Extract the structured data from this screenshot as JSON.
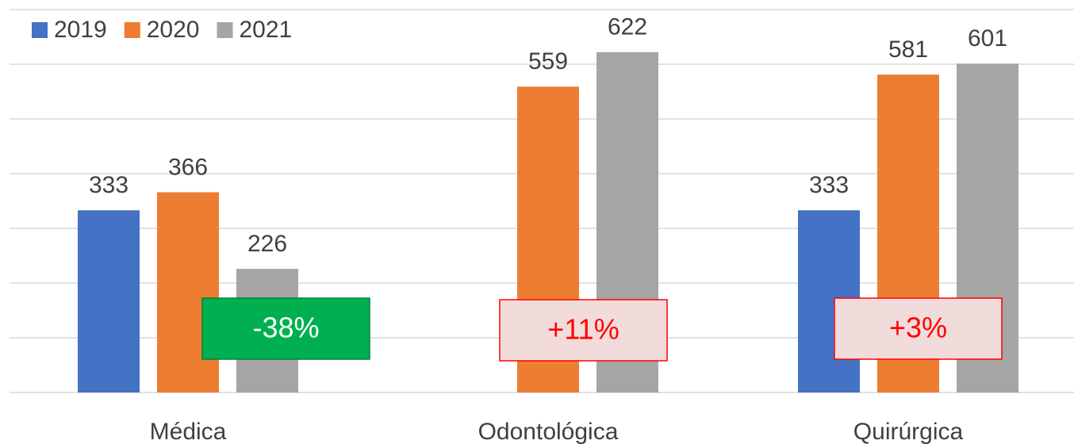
{
  "chart_data": {
    "type": "bar",
    "categories": [
      "Médica",
      "Odontológica",
      "Quirúrgica"
    ],
    "series": [
      {
        "name": "2019",
        "color": "#4472c4",
        "values": [
          333,
          null,
          333
        ]
      },
      {
        "name": "2020",
        "color": "#ed7d31",
        "values": [
          366,
          559,
          581
        ]
      },
      {
        "name": "2021",
        "color": "#a5a5a5",
        "values": [
          226,
          622,
          601
        ]
      }
    ],
    "ylim": [
      0,
      700
    ],
    "yticks": [
      0,
      100,
      200,
      300,
      400,
      500,
      600,
      700
    ],
    "grid": true,
    "legend": "top-left",
    "annotations": [
      {
        "text": "-38%",
        "category": 0,
        "fill": "#00b050",
        "border": "#00803a",
        "color": "#ffffff"
      },
      {
        "text": "+11%",
        "category": 1,
        "fill": "#f2dcdb",
        "border": "#ff0000",
        "color": "#ff0000"
      },
      {
        "text": "+3%",
        "category": 2,
        "fill": "#f2dcdb",
        "border": "#ff0000",
        "color": "#ff0000"
      }
    ]
  }
}
